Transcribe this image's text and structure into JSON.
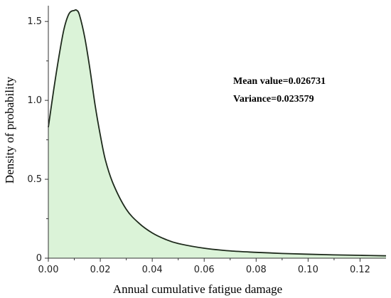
{
  "chart_data": {
    "type": "area",
    "title": "",
    "xlabel": "Annual cumulative fatigue damage",
    "ylabel": "Density of probability",
    "xlim": [
      0,
      0.13
    ],
    "ylim": [
      0,
      1.6
    ],
    "x_ticks": [
      0.0,
      0.02,
      0.04,
      0.06,
      0.08,
      0.1,
      0.12
    ],
    "x_tick_labels": [
      "0.00",
      "0.02",
      "0.04",
      "0.06",
      "0.08",
      "0.10",
      "0.12"
    ],
    "y_ticks": [
      0,
      0.5,
      1.0,
      1.5
    ],
    "y_tick_labels": [
      "0",
      "0.5",
      "1.0",
      "1.5"
    ],
    "grid": false,
    "series": [
      {
        "x": [
          0.0,
          0.002,
          0.004,
          0.006,
          0.008,
          0.01,
          0.011,
          0.012,
          0.014,
          0.016,
          0.018,
          0.02,
          0.022,
          0.025,
          0.03,
          0.035,
          0.04,
          0.045,
          0.05,
          0.06,
          0.07,
          0.08,
          0.09,
          0.1,
          0.11,
          0.12,
          0.13
        ],
        "values": [
          0.83,
          1.06,
          1.27,
          1.45,
          1.55,
          1.57,
          1.57,
          1.54,
          1.4,
          1.2,
          0.97,
          0.78,
          0.62,
          0.47,
          0.31,
          0.22,
          0.16,
          0.12,
          0.093,
          0.063,
          0.046,
          0.037,
          0.03,
          0.025,
          0.021,
          0.018,
          0.015
        ]
      }
    ],
    "fill_color": "#dbf3d8",
    "line_color": "#1e2a1c",
    "annotations": [
      "Mean value=0.026731",
      "Variance=0.023579"
    ]
  }
}
